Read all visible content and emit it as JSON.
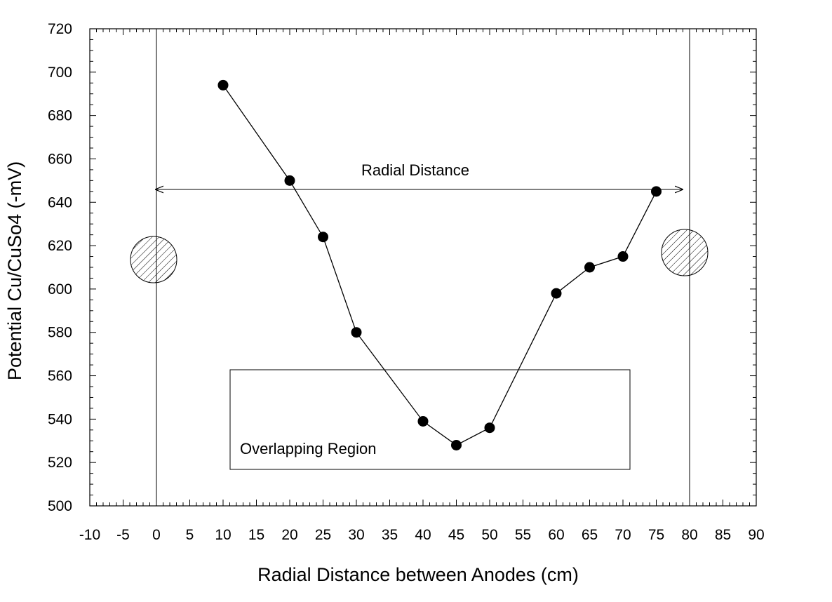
{
  "chart_data": {
    "type": "line",
    "title": "",
    "xlabel": "Radial Distance between Anodes (cm)",
    "ylabel": "Potential Cu/CuSo4 (-mV)",
    "xlim": [
      -10,
      90
    ],
    "ylim": [
      500,
      720
    ],
    "xticks": [
      -10,
      -5,
      0,
      5,
      10,
      15,
      20,
      25,
      30,
      35,
      40,
      45,
      50,
      55,
      60,
      65,
      70,
      75,
      80,
      85,
      90
    ],
    "yticks": [
      500,
      520,
      540,
      560,
      580,
      600,
      620,
      640,
      660,
      680,
      700,
      720
    ],
    "grid": false,
    "series": [
      {
        "x": [
          10,
          20,
          25,
          30,
          40,
          45,
          50,
          60,
          65,
          70,
          75
        ],
        "y": [
          694,
          650,
          624,
          580,
          539,
          528,
          536,
          598,
          610,
          615,
          645
        ]
      }
    ],
    "annotations": {
      "radial_distance_label": "Radial Distance",
      "overlap_label": "Overlapping Region"
    },
    "reference_lines_x": [
      0,
      80
    ]
  },
  "colors": {
    "line": "#000000",
    "marker": "#000000",
    "background": "#ffffff"
  }
}
